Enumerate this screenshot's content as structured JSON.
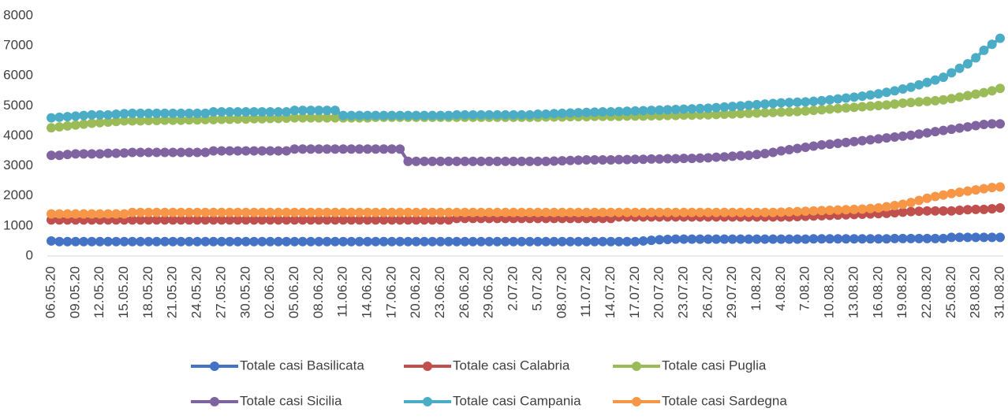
{
  "chart_data": {
    "type": "line",
    "categories": [
      "06.05.20",
      null,
      null,
      "09.05.20",
      null,
      null,
      "12.05.20",
      null,
      null,
      "15.05.20",
      null,
      null,
      "18.05.20",
      null,
      null,
      "21.05.20",
      null,
      null,
      "24.05.20",
      null,
      null,
      "27.05.20",
      null,
      null,
      "30.05.20",
      null,
      null,
      "02.06.20",
      null,
      null,
      "05.06.20",
      null,
      null,
      "08.06.20",
      null,
      null,
      "11.06.20",
      null,
      null,
      "14.06.20",
      null,
      null,
      "17.06.20",
      null,
      null,
      "20.06.20",
      null,
      null,
      "23.06.20",
      null,
      null,
      "26.06.20",
      null,
      null,
      "29.06.20",
      null,
      null,
      "2.07.20",
      null,
      null,
      "5.07.20",
      null,
      null,
      "08.07.20",
      null,
      null,
      "11.07.20",
      null,
      null,
      "14.07.20",
      null,
      null,
      "17.07.20",
      null,
      null,
      "20.07.20",
      null,
      null,
      "23.07.20",
      null,
      null,
      "26.07.20",
      null,
      null,
      "29.07.20",
      null,
      null,
      "1.08.20",
      null,
      null,
      "4.08.20",
      null,
      null,
      "7.08.20",
      null,
      null,
      "10.08.20",
      null,
      null,
      "13.08.20",
      null,
      null,
      "16.08.20",
      null,
      null,
      "19.08.20",
      null,
      null,
      "22.08.20",
      null,
      null,
      "25.08.20",
      null,
      null,
      "28.08.20",
      null,
      null,
      "31.08.20"
    ],
    "series": [
      {
        "name": "Totale casi Basilicata",
        "color": "#4472c4",
        "values": [
          500,
          480,
          480,
          480,
          480,
          480,
          480,
          480,
          480,
          480,
          480,
          480,
          480,
          480,
          480,
          480,
          480,
          480,
          480,
          480,
          480,
          480,
          480,
          480,
          480,
          480,
          480,
          480,
          480,
          480,
          480,
          480,
          480,
          480,
          480,
          480,
          480,
          480,
          480,
          480,
          480,
          480,
          480,
          480,
          480,
          480,
          480,
          480,
          480,
          480,
          480,
          480,
          480,
          480,
          480,
          480,
          480,
          480,
          480,
          480,
          480,
          480,
          480,
          480,
          480,
          480,
          480,
          480,
          480,
          480,
          480,
          480,
          480,
          500,
          520,
          540,
          550,
          560,
          560,
          560,
          560,
          560,
          560,
          560,
          560,
          560,
          560,
          560,
          560,
          560,
          560,
          560,
          560,
          560,
          570,
          570,
          570,
          570,
          570,
          570,
          570,
          570,
          570,
          570,
          580,
          580,
          580,
          580,
          580,
          580,
          580,
          620,
          620,
          620,
          620,
          620,
          620,
          620
        ]
      },
      {
        "name": "Totale casi Calabria",
        "color": "#c0504d",
        "values": [
          1200,
          1200,
          1200,
          1200,
          1200,
          1200,
          1200,
          1200,
          1200,
          1200,
          1200,
          1200,
          1200,
          1200,
          1200,
          1200,
          1200,
          1200,
          1200,
          1200,
          1200,
          1200,
          1200,
          1200,
          1200,
          1200,
          1200,
          1200,
          1200,
          1200,
          1200,
          1200,
          1200,
          1200,
          1200,
          1200,
          1200,
          1200,
          1200,
          1200,
          1200,
          1200,
          1200,
          1200,
          1200,
          1200,
          1200,
          1200,
          1200,
          1200,
          1250,
          1250,
          1250,
          1250,
          1250,
          1250,
          1250,
          1250,
          1250,
          1250,
          1250,
          1250,
          1250,
          1250,
          1250,
          1250,
          1250,
          1250,
          1250,
          1250,
          1300,
          1300,
          1300,
          1300,
          1300,
          1300,
          1300,
          1300,
          1300,
          1300,
          1300,
          1300,
          1300,
          1300,
          1300,
          1300,
          1300,
          1300,
          1300,
          1300,
          1300,
          1300,
          1310,
          1320,
          1330,
          1340,
          1350,
          1360,
          1370,
          1380,
          1390,
          1400,
          1410,
          1420,
          1440,
          1460,
          1480,
          1490,
          1500,
          1500,
          1500,
          1500,
          1520,
          1540,
          1550,
          1550,
          1570,
          1600
        ]
      },
      {
        "name": "Totale casi Puglia",
        "color": "#9bbb59",
        "values": [
          4270,
          4300,
          4330,
          4360,
          4390,
          4420,
          4440,
          4460,
          4480,
          4500,
          4500,
          4500,
          4510,
          4510,
          4520,
          4520,
          4520,
          4530,
          4530,
          4540,
          4540,
          4550,
          4550,
          4560,
          4560,
          4570,
          4570,
          4580,
          4580,
          4590,
          4600,
          4600,
          4600,
          4600,
          4600,
          4600,
          4600,
          4600,
          4600,
          4600,
          4620,
          4620,
          4620,
          4620,
          4620,
          4620,
          4620,
          4620,
          4620,
          4620,
          4620,
          4620,
          4620,
          4620,
          4620,
          4620,
          4620,
          4620,
          4620,
          4620,
          4620,
          4630,
          4630,
          4630,
          4640,
          4640,
          4640,
          4650,
          4650,
          4650,
          4650,
          4660,
          4660,
          4660,
          4670,
          4670,
          4680,
          4680,
          4690,
          4690,
          4700,
          4700,
          4710,
          4720,
          4730,
          4740,
          4750,
          4760,
          4770,
          4780,
          4790,
          4800,
          4810,
          4830,
          4850,
          4870,
          4890,
          4910,
          4930,
          4950,
          4970,
          4990,
          5010,
          5030,
          5060,
          5090,
          5110,
          5130,
          5150,
          5170,
          5200,
          5240,
          5290,
          5340,
          5390,
          5440,
          5500,
          5580
        ]
      },
      {
        "name": "Totale casi Sicilia",
        "color": "#8064a2",
        "values": [
          3350,
          3350,
          3380,
          3400,
          3400,
          3400,
          3400,
          3420,
          3420,
          3430,
          3450,
          3450,
          3450,
          3450,
          3450,
          3450,
          3450,
          3450,
          3450,
          3450,
          3500,
          3500,
          3500,
          3500,
          3500,
          3500,
          3500,
          3500,
          3500,
          3500,
          3560,
          3560,
          3560,
          3560,
          3560,
          3560,
          3560,
          3560,
          3560,
          3560,
          3560,
          3560,
          3560,
          3560,
          3150,
          3150,
          3150,
          3150,
          3150,
          3150,
          3150,
          3150,
          3150,
          3150,
          3150,
          3150,
          3150,
          3150,
          3150,
          3150,
          3150,
          3150,
          3160,
          3170,
          3180,
          3190,
          3200,
          3200,
          3200,
          3200,
          3210,
          3210,
          3220,
          3220,
          3230,
          3230,
          3240,
          3240,
          3250,
          3250,
          3260,
          3270,
          3290,
          3300,
          3320,
          3340,
          3350,
          3380,
          3410,
          3450,
          3500,
          3540,
          3580,
          3620,
          3660,
          3700,
          3720,
          3750,
          3780,
          3810,
          3840,
          3870,
          3900,
          3930,
          3960,
          3990,
          4020,
          4060,
          4100,
          4140,
          4180,
          4220,
          4260,
          4300,
          4340,
          4380,
          4400,
          4400
        ]
      },
      {
        "name": "Totale casi Campania",
        "color": "#4bacc6",
        "values": [
          4600,
          4620,
          4640,
          4660,
          4680,
          4700,
          4700,
          4700,
          4720,
          4740,
          4750,
          4750,
          4750,
          4750,
          4750,
          4750,
          4750,
          4750,
          4750,
          4750,
          4800,
          4800,
          4800,
          4800,
          4800,
          4800,
          4800,
          4800,
          4800,
          4800,
          4850,
          4850,
          4850,
          4850,
          4850,
          4850,
          4680,
          4680,
          4680,
          4680,
          4680,
          4680,
          4680,
          4680,
          4680,
          4680,
          4680,
          4680,
          4680,
          4680,
          4700,
          4700,
          4700,
          4700,
          4700,
          4700,
          4700,
          4700,
          4700,
          4700,
          4720,
          4720,
          4740,
          4750,
          4760,
          4770,
          4780,
          4790,
          4800,
          4800,
          4810,
          4820,
          4830,
          4840,
          4850,
          4860,
          4870,
          4880,
          4890,
          4900,
          4910,
          4920,
          4940,
          4960,
          4980,
          5000,
          5020,
          5040,
          5060,
          5080,
          5100,
          5110,
          5120,
          5130,
          5150,
          5170,
          5200,
          5230,
          5260,
          5290,
          5320,
          5360,
          5400,
          5450,
          5500,
          5560,
          5620,
          5700,
          5780,
          5860,
          5950,
          6100,
          6250,
          6400,
          6600,
          6850,
          7050,
          7250
        ]
      },
      {
        "name": "Totale casi Sardegna",
        "color": "#f79646",
        "values": [
          1400,
          1400,
          1400,
          1400,
          1400,
          1400,
          1400,
          1400,
          1400,
          1400,
          1450,
          1450,
          1450,
          1450,
          1450,
          1450,
          1450,
          1450,
          1450,
          1450,
          1450,
          1450,
          1450,
          1450,
          1450,
          1450,
          1450,
          1450,
          1450,
          1450,
          1450,
          1450,
          1450,
          1450,
          1450,
          1450,
          1450,
          1450,
          1450,
          1450,
          1450,
          1450,
          1450,
          1450,
          1450,
          1450,
          1450,
          1450,
          1450,
          1450,
          1450,
          1450,
          1450,
          1450,
          1450,
          1450,
          1450,
          1450,
          1450,
          1450,
          1450,
          1450,
          1450,
          1450,
          1450,
          1450,
          1450,
          1450,
          1450,
          1450,
          1450,
          1450,
          1450,
          1450,
          1450,
          1450,
          1450,
          1450,
          1450,
          1450,
          1450,
          1450,
          1450,
          1450,
          1450,
          1450,
          1450,
          1450,
          1450,
          1450,
          1460,
          1470,
          1480,
          1490,
          1500,
          1510,
          1520,
          1530,
          1540,
          1550,
          1560,
          1580,
          1600,
          1640,
          1680,
          1720,
          1780,
          1850,
          1920,
          1980,
          2030,
          2080,
          2120,
          2160,
          2200,
          2240,
          2280,
          2300
        ]
      }
    ],
    "ylim": [
      0,
      8000
    ],
    "yticks": [
      0,
      1000,
      2000,
      3000,
      4000,
      5000,
      6000,
      7000,
      8000
    ],
    "grid": false,
    "legend": "bottom"
  }
}
